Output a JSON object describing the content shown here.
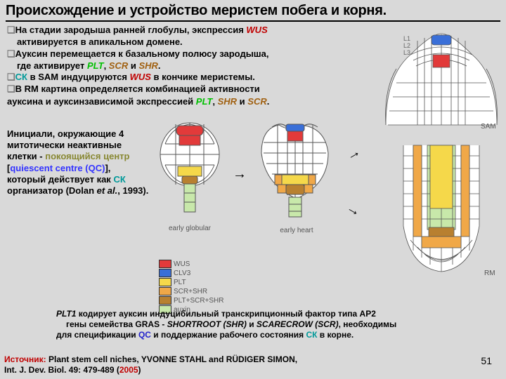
{
  "title": "Происхождение и устройство меристем побега и корня.",
  "bullets": {
    "b1a": "На стадии зародыша ранней глобулы, экспрессия ",
    "b1_wus": "WUS",
    "b1b": "активируется в апикальном домене.",
    "b2a": "Ауксин перемещается к базальному полюсу зародыша,",
    "b2b": "где  активирует ",
    "b2_plt": "PLT",
    "b2_comma": ", ",
    "b2_scr": "SCR",
    "b2_and": " и ",
    "b2_shr": "SHR",
    "b2_dot": ".",
    "b3a": "СК",
    "b3b": " в SAM индуцируются ",
    "b3_wus": "WUS",
    "b3c": " в кончике меристемы.",
    "b4a": "В RM картина определяется комбинацией активности",
    "b4b": "ауксина и  ауксинзависимой экспрессией ",
    "b4_plt": "PLT",
    "b4_c1": ", ",
    "b4_shr": "SHR",
    "b4_c2": " и ",
    "b4_scr": "SCR",
    "b4_dot": "."
  },
  "init": {
    "line1": "Инициали, окружающие 4 митотически неактивные клетки - ",
    "rest": "покоящийся центр",
    "line2a": "[",
    "qc_en": "quiescent centre (QC)",
    "line2b": "],",
    "line3a": "который действует как ",
    "ck": "СК",
    "line3b": " организатор (Dolan ",
    "etal": "et al.",
    "line3c": ", 1993)."
  },
  "legend": {
    "items": [
      {
        "label": "WUS",
        "color": "#e23a3a"
      },
      {
        "label": "CLV3",
        "color": "#3a6fd8"
      },
      {
        "label": "PLT",
        "color": "#f5d84a"
      },
      {
        "label": "SCR+SHR",
        "color": "#f0a848"
      },
      {
        "label": "PLT+SCR+SHR",
        "color": "#b88030"
      },
      {
        "label": "auxin",
        "color": "#c8e8aa"
      }
    ]
  },
  "captions": {
    "early_globular": "early globular",
    "early_heart": "early heart",
    "sam": "SAM",
    "rm": "RM",
    "l1": "L1",
    "l2": "L2",
    "l3": "L3"
  },
  "bottom": {
    "line1a": "PLT1",
    "line1b": " кодирует ауксин индуцибильный транскрипционный  фактор типа AP2",
    "line2a": "гены семейства GRAS - ",
    "shortroot": "SHORTROOT",
    "shr": " (SHR)",
    "and": " и ",
    "scarecrow": "SCARECROW",
    "scr": " (SCR)",
    "line2b": ", необходимы",
    "line3a": "для спецификации ",
    "qc": "QC",
    "line3b": " и поддержание рабочего состояния ",
    "ck": "СК",
    "line3c": " в корне."
  },
  "source": {
    "label": "Источник:",
    "text1": " Plant stem cell niches, YVONNE STAHL and RÜDIGER SIMON,",
    "text2": "Int. J. Dev. Biol. 49: 479-489 (",
    "year": "2005",
    "text3": ")"
  },
  "pagenum": "51",
  "colors": {
    "cell_stroke": "#555555",
    "cell_fill": "#ffffff",
    "wus": "#e23a3a",
    "clv3": "#3a6fd8",
    "plt": "#f5d84a",
    "scrshr": "#f0a848",
    "pltscrshr": "#b88030",
    "auxin": "#c8e8aa"
  }
}
